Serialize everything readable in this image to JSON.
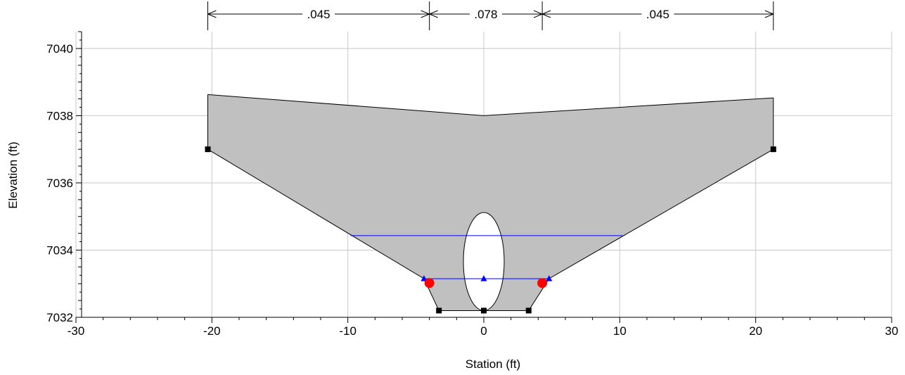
{
  "chart_data": {
    "type": "cross-section",
    "xlabel": "Station (ft)",
    "ylabel": "Elevation (ft)",
    "xlim": [
      -30,
      30
    ],
    "ylim": [
      7032,
      7040.5
    ],
    "x_ticks": [
      -30,
      -20,
      -10,
      0,
      10,
      20,
      30
    ],
    "y_ticks": [
      7032,
      7034,
      7036,
      7038,
      7040
    ],
    "grid": true,
    "manning_n": [
      {
        "label": ".045",
        "from": -20.3,
        "to": -4.0
      },
      {
        "label": ".078",
        "from": -4.0,
        "to": 4.3
      },
      {
        "label": ".045",
        "from": 4.3,
        "to": 21.3
      }
    ],
    "embankment_top": [
      [
        -20.3,
        7038.63
      ],
      [
        0,
        7038.0
      ],
      [
        21.3,
        7038.53
      ]
    ],
    "ground_points": [
      [
        -20.3,
        7037.0
      ],
      [
        -4.4,
        7033.15
      ],
      [
        -3.3,
        7032.2
      ],
      [
        0,
        7032.2
      ],
      [
        3.3,
        7032.2
      ],
      [
        4.8,
        7033.15
      ],
      [
        21.3,
        7037.0
      ]
    ],
    "culvert": {
      "center_x": 0,
      "bottom": 7032.2,
      "top": 7035.12,
      "half_width": 1.5
    },
    "water_surfaces": [
      {
        "elevation": 7034.43,
        "from": -9.8,
        "to": 10.2
      },
      {
        "elevation": 7033.15,
        "from": -4.4,
        "to": 4.8
      }
    ],
    "bank_stations": [
      [
        -4.0,
        7033.02
      ],
      [
        4.3,
        7033.02
      ]
    ],
    "wse_markers": [
      [
        -4.4,
        7033.15
      ],
      [
        0,
        7033.15
      ],
      [
        4.8,
        7033.15
      ]
    ],
    "point_markers": [
      [
        -20.3,
        7037.0
      ],
      [
        -3.3,
        7032.2
      ],
      [
        0,
        7032.2
      ],
      [
        3.3,
        7032.2
      ],
      [
        21.3,
        7037.0
      ]
    ]
  }
}
